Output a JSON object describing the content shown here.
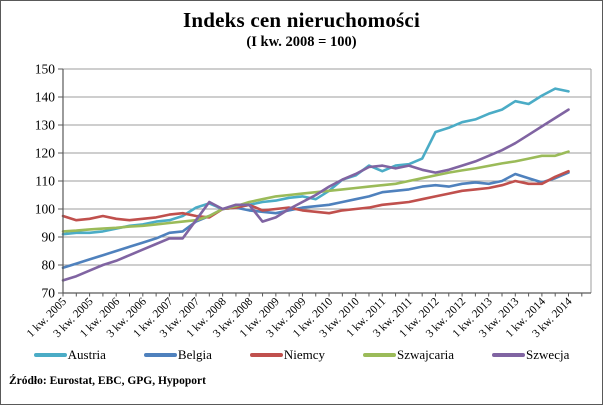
{
  "title": "Indeks cen nieruchomości",
  "subtitle": "(I kw. 2008 = 100)",
  "source": "Źródło: Eurostat, EBC, GPG, Hypoport",
  "chart_data": {
    "type": "line",
    "title": "Indeks cen nieruchomości",
    "subtitle": "(I kw. 2008 = 100)",
    "ylim": [
      70,
      150
    ],
    "ytick_step": 10,
    "grid": "horizontal",
    "legend_position": "bottom",
    "x_note": "quarterly points, every second quarter labeled",
    "x_tick_labels": [
      "1 kw. 2005",
      "3 kw. 2005",
      "1 kw. 2006",
      "3 kw. 2006",
      "1 kw. 2007",
      "3 kw. 2007",
      "1 kw. 2008",
      "3 kw. 2008",
      "1 kw. 2009",
      "3 kw. 2009",
      "1 kw. 2010",
      "3 kw. 2010",
      "1 kw. 2011",
      "3 kw. 2011",
      "1 kw. 2012",
      "3 kw. 2012",
      "1 kw. 2013",
      "3 kw. 2013",
      "1 kw. 2014",
      "3 kw. 2014"
    ],
    "series": [
      {
        "name": "Austria",
        "color": "#4BACC6",
        "values": [
          91,
          91.5,
          91.5,
          92,
          93,
          94,
          94.5,
          95.5,
          96,
          97.5,
          100.5,
          102,
          100,
          100.5,
          101.5,
          102.5,
          103,
          104,
          104.5,
          103.5,
          106.5,
          110.5,
          112,
          115.5,
          113.5,
          115.5,
          116,
          118,
          127.5,
          129,
          131,
          132,
          134,
          135.5,
          138.5,
          137.5,
          140.5,
          143,
          142
        ]
      },
      {
        "name": "Belgia",
        "color": "#4F81BD",
        "values": [
          79,
          80.5,
          82,
          83.5,
          85,
          86.5,
          88,
          89.5,
          91.5,
          92,
          95.5,
          97.5,
          100,
          100.5,
          99.5,
          99,
          98.5,
          99.5,
          100.5,
          101,
          101.5,
          102.5,
          103.5,
          104.5,
          106,
          106.5,
          107,
          108,
          108.5,
          108,
          109,
          109.5,
          109,
          110,
          112.5,
          111,
          109.5,
          111,
          113
        ]
      },
      {
        "name": "Niemcy",
        "color": "#C0504D",
        "values": [
          97.5,
          96,
          96.5,
          97.5,
          96.5,
          96,
          96.5,
          97,
          98,
          98.5,
          97.5,
          97,
          100,
          100.5,
          101.5,
          99.5,
          100,
          100.5,
          99.5,
          99,
          98.5,
          99.5,
          100,
          100.5,
          101.5,
          102,
          102.5,
          103.5,
          104.5,
          105.5,
          106.5,
          107,
          107.5,
          108.5,
          110,
          109,
          109,
          111.5,
          113.5
        ]
      },
      {
        "name": "Szwajcaria",
        "color": "#9BBB59",
        "values": [
          92,
          92.3,
          92.7,
          93,
          93.3,
          93.7,
          94,
          94.5,
          95,
          95.5,
          96,
          97.5,
          100,
          101,
          102.5,
          103.5,
          104.5,
          105,
          105.5,
          106,
          106.5,
          107,
          107.5,
          108,
          108.5,
          109,
          110,
          111,
          112,
          113,
          113.8,
          114.5,
          115.4,
          116.3,
          117,
          118,
          119,
          119,
          120.5
        ]
      },
      {
        "name": "Szwecja",
        "color": "#8064A2",
        "values": [
          74.5,
          76,
          78,
          80,
          81.5,
          83.5,
          85.5,
          87.5,
          89.5,
          89.5,
          96,
          102.5,
          100,
          101.5,
          101.5,
          95.5,
          97,
          100,
          102.5,
          105,
          108,
          110.5,
          112.5,
          115,
          115.5,
          114.5,
          115.5,
          114,
          113,
          114,
          115.5,
          117,
          119,
          121,
          123.5,
          126.5,
          129.5,
          132.5,
          135.5
        ]
      }
    ]
  }
}
